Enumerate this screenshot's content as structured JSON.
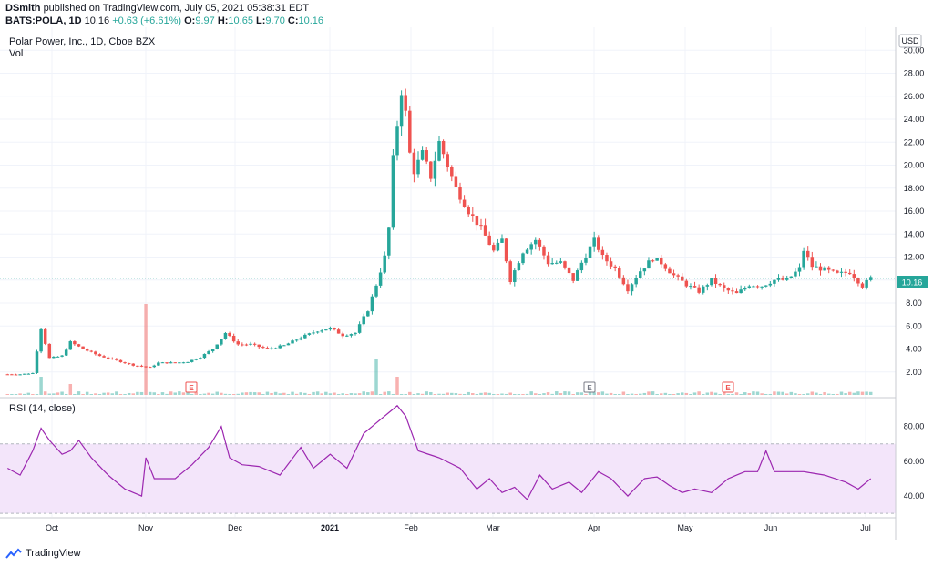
{
  "header": {
    "author": "DSmith",
    "published_text": "published on TradingView.com, July 05, 2021 05:38:31 EDT",
    "symbol": "BATS:POLA, 1D",
    "last": "10.16",
    "change": "+0.63 (+6.61%)",
    "o_label": "O:",
    "o_value": "9.97",
    "h_label": "H:",
    "h_value": "10.65",
    "l_label": "L:",
    "l_value": "9.70",
    "c_label": "C:",
    "c_value": "10.16"
  },
  "legend": {
    "main": "Polar Power, Inc., 1D, Cboe BZX",
    "vol": "Vol",
    "rsi": "RSI (14, close)"
  },
  "currency_label": "USD",
  "last_price_tag": "10.16",
  "earnings_marker": "E",
  "footer": {
    "brand": "TradingView",
    "logo_icon": "tradingview-logo-icon"
  },
  "colors": {
    "up": "#26a69a",
    "down": "#ef5350",
    "rsi_line": "#9c27b0",
    "rsi_band": "#f3e5fa",
    "earn_red": "#ef5350",
    "earn_gray": "#787b86"
  },
  "chart_data": [
    {
      "type": "candlestick",
      "title": "Polar Power, Inc., 1D, Cboe BZX",
      "ylabel": "USD",
      "ylim": [
        0,
        32
      ],
      "yticks": [
        2,
        4,
        6,
        8,
        10,
        12,
        14,
        16,
        18,
        20,
        22,
        24,
        26,
        28,
        30
      ],
      "ytick_labels": [
        "2.00",
        "4.00",
        "6.00",
        "8.00",
        "10.00",
        "12.00",
        "14.00",
        "16.00",
        "18.00",
        "20.00",
        "22.00",
        "24.00",
        "26.00",
        "28.00",
        "30.00"
      ],
      "x_labels": [
        "Oct",
        "Nov",
        "Dec",
        "2021",
        "Feb",
        "Mar",
        "Apr",
        "May",
        "Jun",
        "Jul"
      ],
      "last_price": 10.16,
      "earnings_events": [
        {
          "month": "Nov",
          "marker": "E"
        },
        {
          "month": "Apr",
          "marker": "E"
        },
        {
          "month": "May",
          "marker": "E"
        }
      ],
      "close_path": [
        [
          0,
          1.8
        ],
        [
          3,
          1.8
        ],
        [
          6,
          1.9
        ],
        [
          8,
          5.8
        ],
        [
          10,
          3.2
        ],
        [
          13,
          3.4
        ],
        [
          15,
          4.6
        ],
        [
          18,
          4.0
        ],
        [
          22,
          3.4
        ],
        [
          26,
          3.0
        ],
        [
          30,
          2.6
        ],
        [
          34,
          2.4
        ],
        [
          36,
          2.8
        ],
        [
          40,
          2.8
        ],
        [
          43,
          2.9
        ],
        [
          46,
          3.3
        ],
        [
          49,
          4.0
        ],
        [
          52,
          5.4
        ],
        [
          55,
          4.4
        ],
        [
          58,
          4.4
        ],
        [
          62,
          4.0
        ],
        [
          66,
          4.3
        ],
        [
          70,
          5.0
        ],
        [
          74,
          5.6
        ],
        [
          77,
          5.8
        ],
        [
          80,
          5.2
        ],
        [
          83,
          5.4
        ],
        [
          86,
          7.4
        ],
        [
          88,
          9.6
        ],
        [
          90,
          12.0
        ],
        [
          91,
          14.5
        ],
        [
          92,
          20.5
        ],
        [
          94,
          26.5
        ],
        [
          95,
          24.5
        ],
        [
          96,
          21.0
        ],
        [
          97,
          19.5
        ],
        [
          99,
          21.0
        ],
        [
          101,
          19.0
        ],
        [
          103,
          22.0
        ],
        [
          105,
          20.0
        ],
        [
          107,
          18.0
        ],
        [
          110,
          16.0
        ],
        [
          113,
          14.5
        ],
        [
          116,
          12.5
        ],
        [
          118,
          13.5
        ],
        [
          120,
          10.0
        ],
        [
          123,
          12.5
        ],
        [
          126,
          13.5
        ],
        [
          129,
          11.5
        ],
        [
          132,
          11.5
        ],
        [
          135,
          10.0
        ],
        [
          137,
          11.5
        ],
        [
          140,
          13.5
        ],
        [
          142,
          12.0
        ],
        [
          145,
          11.0
        ],
        [
          148,
          9.2
        ],
        [
          151,
          10.8
        ],
        [
          154,
          11.9
        ],
        [
          156,
          11.5
        ],
        [
          159,
          10.4
        ],
        [
          162,
          9.6
        ],
        [
          165,
          9.0
        ],
        [
          168,
          10.0
        ],
        [
          171,
          9.2
        ],
        [
          174,
          8.8
        ],
        [
          177,
          9.6
        ],
        [
          180,
          9.5
        ],
        [
          183,
          10.0
        ],
        [
          186,
          10.0
        ],
        [
          189,
          11.0
        ],
        [
          190,
          12.6
        ],
        [
          192,
          11.2
        ],
        [
          195,
          10.9
        ],
        [
          198,
          10.5
        ],
        [
          201,
          10.7
        ],
        [
          204,
          9.5
        ],
        [
          206,
          10.16
        ]
      ]
    },
    {
      "type": "bar",
      "title": "Vol",
      "note": "volume histogram overlay; unscaled, relative heights",
      "spikes": [
        {
          "bar": 8,
          "relative": 0.2
        },
        {
          "bar": 15,
          "relative": 0.12
        },
        {
          "bar": 33,
          "relative": 1.0
        },
        {
          "bar": 88,
          "relative": 0.4
        },
        {
          "bar": 93,
          "relative": 0.2
        }
      ]
    },
    {
      "type": "line",
      "title": "RSI (14, close)",
      "ylim": [
        28,
        95
      ],
      "yticks": [
        40,
        60,
        80
      ],
      "ytick_labels": [
        "40.00",
        "60.00",
        "80.00"
      ],
      "band": [
        30,
        70
      ],
      "path": [
        [
          0,
          56
        ],
        [
          3,
          52
        ],
        [
          6,
          66
        ],
        [
          8,
          79
        ],
        [
          10,
          72
        ],
        [
          13,
          64
        ],
        [
          15,
          66
        ],
        [
          17,
          72
        ],
        [
          20,
          62
        ],
        [
          24,
          52
        ],
        [
          28,
          44
        ],
        [
          32,
          40
        ],
        [
          33,
          62
        ],
        [
          35,
          50
        ],
        [
          40,
          50
        ],
        [
          44,
          58
        ],
        [
          48,
          68
        ],
        [
          51,
          80
        ],
        [
          53,
          62
        ],
        [
          56,
          58
        ],
        [
          60,
          57
        ],
        [
          65,
          52
        ],
        [
          70,
          68
        ],
        [
          73,
          56
        ],
        [
          77,
          64
        ],
        [
          81,
          56
        ],
        [
          85,
          76
        ],
        [
          88,
          82
        ],
        [
          90,
          86
        ],
        [
          93,
          92
        ],
        [
          95,
          86
        ],
        [
          98,
          66
        ],
        [
          103,
          62
        ],
        [
          108,
          56
        ],
        [
          112,
          44
        ],
        [
          115,
          50
        ],
        [
          118,
          42
        ],
        [
          121,
          45
        ],
        [
          124,
          38
        ],
        [
          127,
          52
        ],
        [
          130,
          44
        ],
        [
          134,
          48
        ],
        [
          137,
          42
        ],
        [
          141,
          54
        ],
        [
          144,
          50
        ],
        [
          148,
          40
        ],
        [
          152,
          50
        ],
        [
          155,
          51
        ],
        [
          158,
          46
        ],
        [
          161,
          42
        ],
        [
          164,
          44
        ],
        [
          168,
          42
        ],
        [
          172,
          50
        ],
        [
          176,
          54
        ],
        [
          179,
          54
        ],
        [
          181,
          66
        ],
        [
          183,
          54
        ],
        [
          186,
          54
        ],
        [
          190,
          54
        ],
        [
          195,
          52
        ],
        [
          200,
          48
        ],
        [
          203,
          44
        ],
        [
          206,
          50
        ]
      ]
    }
  ]
}
